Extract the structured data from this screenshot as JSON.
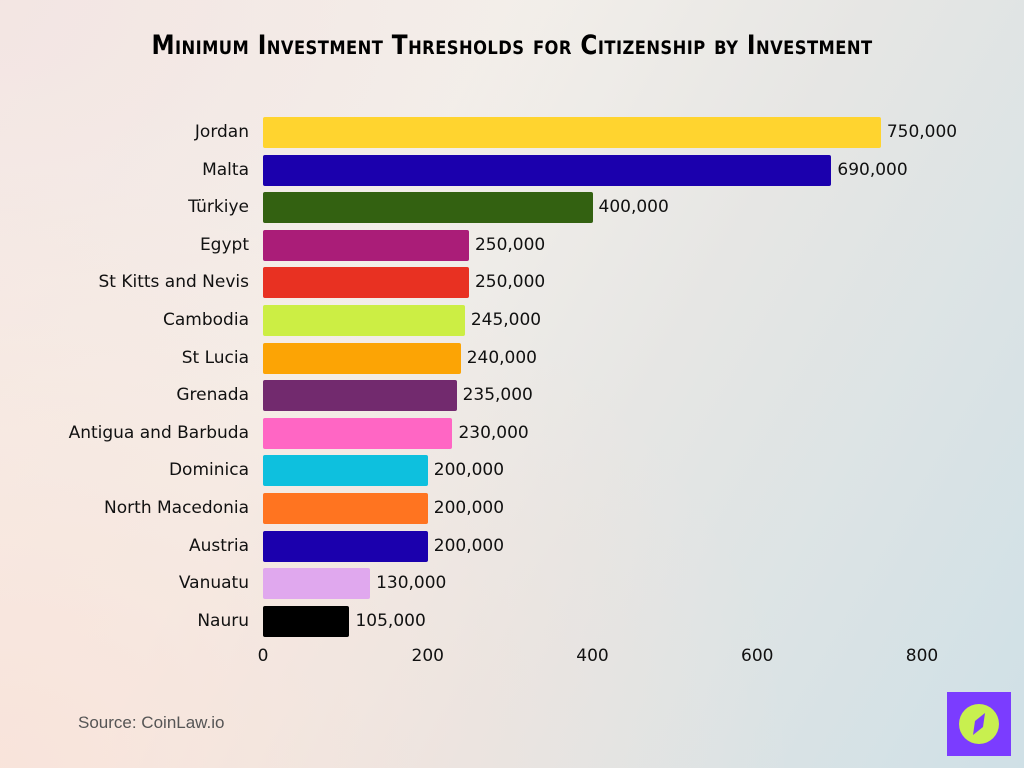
{
  "title": "Minimum Investment Thresholds for Citizenship by Investment",
  "source": "Source: CoinLaw.io",
  "logo": {
    "icon": "compass-icon",
    "background": "#7B3CFF",
    "circle": "#C8F04F"
  },
  "chart_data": {
    "type": "bar",
    "orientation": "horizontal",
    "title": "Minimum Investment Thresholds for Citizenship by Investment",
    "xlabel": "",
    "ylabel": "",
    "xlim": [
      0,
      800
    ],
    "x_ticks": [
      "0",
      "200",
      "400",
      "600",
      "800"
    ],
    "grid": false,
    "legend": null,
    "unit_note": "axis in thousands",
    "categories": [
      "Jordan",
      "Malta",
      "Türkiye",
      "Egypt",
      "St Kitts and Nevis",
      "Cambodia",
      "St Lucia",
      "Grenada",
      "Antigua and Barbuda",
      "Dominica",
      "North Macedonia",
      "Austria",
      "Vanuatu",
      "Nauru"
    ],
    "values": [
      750000,
      690000,
      400000,
      250000,
      250000,
      245000,
      240000,
      235000,
      230000,
      200000,
      200000,
      200000,
      130000,
      105000
    ],
    "value_labels": [
      "750,000",
      "690,000",
      "400,000",
      "250,000",
      "250,000",
      "245,000",
      "240,000",
      "235,000",
      "230,000",
      "200,000",
      "200,000",
      "200,000",
      "130,000",
      "105,000"
    ],
    "colors": [
      "#FFD42F",
      "#1B00AD",
      "#336111",
      "#AA1D78",
      "#E83122",
      "#CCEE44",
      "#FCA405",
      "#722A6E",
      "#FF66C4",
      "#0EC0DE",
      "#FF7420",
      "#1B00AD",
      "#E0A8EE",
      "#000000"
    ]
  }
}
